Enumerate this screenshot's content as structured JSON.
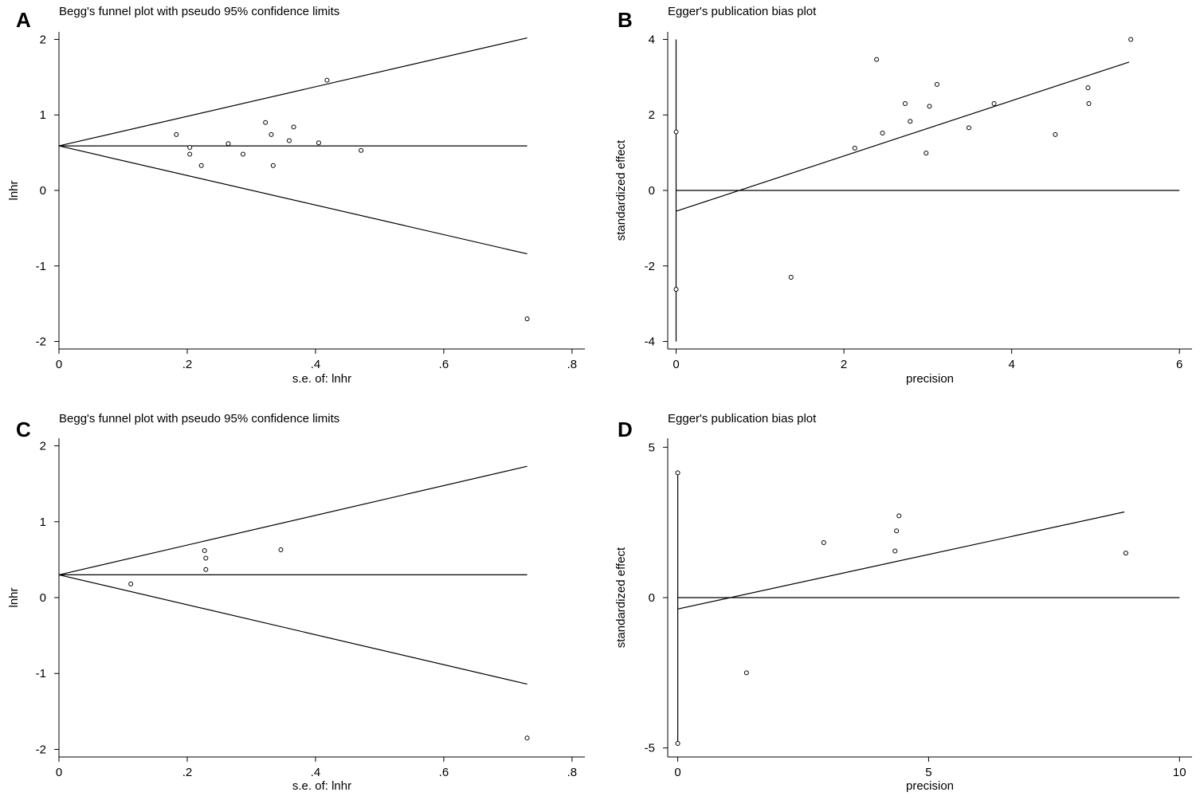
{
  "chart_data": [
    {
      "panel": "A",
      "type": "scatter",
      "title": "Begg's funnel plot with pseudo 95% confidence limits",
      "xlabel": "s.e. of: lnhr",
      "ylabel": "lnhr",
      "xlim": [
        0,
        0.82
      ],
      "ylim": [
        -2.1,
        2.1
      ],
      "xticks": [
        0,
        0.2,
        0.4,
        0.6,
        0.8
      ],
      "xtick_labels": [
        "0",
        ".2",
        ".4",
        ".6",
        ".8"
      ],
      "yticks": [
        -2,
        -1,
        0,
        1,
        2
      ],
      "ytick_labels": [
        "-2",
        "-1",
        "0",
        "1",
        "2"
      ],
      "grid": false,
      "lines": [
        {
          "name": "pooled estimate",
          "points": [
            [
              0,
              0.59
            ],
            [
              0.73,
              0.59
            ]
          ]
        },
        {
          "name": "upper pseudo 95% limit",
          "points": [
            [
              0,
              0.59
            ],
            [
              0.73,
              2.02
            ]
          ]
        },
        {
          "name": "lower pseudo 95% limit",
          "points": [
            [
              0,
              0.59
            ],
            [
              0.73,
              -0.84
            ]
          ]
        }
      ],
      "points": [
        [
          0.183,
          0.74
        ],
        [
          0.204,
          0.57
        ],
        [
          0.204,
          0.48
        ],
        [
          0.222,
          0.33
        ],
        [
          0.264,
          0.62
        ],
        [
          0.287,
          0.48
        ],
        [
          0.322,
          0.9
        ],
        [
          0.331,
          0.74
        ],
        [
          0.334,
          0.33
        ],
        [
          0.359,
          0.66
        ],
        [
          0.366,
          0.84
        ],
        [
          0.405,
          0.63
        ],
        [
          0.418,
          1.46
        ],
        [
          0.471,
          0.53
        ],
        [
          0.73,
          -1.7
        ]
      ]
    },
    {
      "panel": "B",
      "type": "scatter",
      "title": "Egger's publication bias plot",
      "xlabel": "precision",
      "ylabel": "standardized effect",
      "xlim": [
        -0.1,
        6.15
      ],
      "ylim": [
        -4.2,
        4.2
      ],
      "xticks": [
        0,
        2,
        4,
        6
      ],
      "xtick_labels": [
        "0",
        "2",
        "4",
        "6"
      ],
      "yticks": [
        -4,
        -2,
        0,
        2,
        4
      ],
      "ytick_labels": [
        "-4",
        "-2",
        "0",
        "2",
        "4"
      ],
      "grid": false,
      "lines": [
        {
          "name": "zero line",
          "points": [
            [
              0,
              0
            ],
            [
              6,
              0
            ]
          ]
        },
        {
          "name": "regression line",
          "points": [
            [
              0,
              -0.55
            ],
            [
              5.4,
              3.4
            ]
          ]
        },
        {
          "name": "intercept CI",
          "points": [
            [
              0,
              -4
            ],
            [
              0,
              4
            ]
          ]
        }
      ],
      "points": [
        [
          0,
          1.55
        ],
        [
          0,
          -2.62
        ],
        [
          1.37,
          -2.3
        ],
        [
          2.13,
          1.12
        ],
        [
          2.39,
          3.47
        ],
        [
          2.46,
          1.52
        ],
        [
          2.73,
          2.3
        ],
        [
          2.79,
          1.83
        ],
        [
          2.98,
          0.99
        ],
        [
          3.02,
          2.23
        ],
        [
          3.11,
          2.81
        ],
        [
          3.49,
          1.66
        ],
        [
          3.79,
          2.3
        ],
        [
          4.52,
          1.48
        ],
        [
          4.91,
          2.72
        ],
        [
          4.92,
          2.3
        ],
        [
          5.42,
          4.0
        ]
      ]
    },
    {
      "panel": "C",
      "type": "scatter",
      "title": "Begg's funnel plot with pseudo 95% confidence limits",
      "xlabel": "s.e. of: lnhr",
      "ylabel": "lnhr",
      "xlim": [
        0,
        0.82
      ],
      "ylim": [
        -2.1,
        2.1
      ],
      "xticks": [
        0,
        0.2,
        0.4,
        0.6,
        0.8
      ],
      "xtick_labels": [
        "0",
        ".2",
        ".4",
        ".6",
        ".8"
      ],
      "yticks": [
        -2,
        -1,
        0,
        1,
        2
      ],
      "ytick_labels": [
        "-2",
        "-1",
        "0",
        "1",
        "2"
      ],
      "grid": false,
      "lines": [
        {
          "name": "pooled estimate",
          "points": [
            [
              0,
              0.3
            ],
            [
              0.73,
              0.3
            ]
          ]
        },
        {
          "name": "upper pseudo 95% limit",
          "points": [
            [
              0,
              0.3
            ],
            [
              0.73,
              1.73
            ]
          ]
        },
        {
          "name": "lower pseudo 95% limit",
          "points": [
            [
              0,
              0.3
            ],
            [
              0.73,
              -1.14
            ]
          ]
        }
      ],
      "points": [
        [
          0.112,
          0.18
        ],
        [
          0.227,
          0.62
        ],
        [
          0.229,
          0.52
        ],
        [
          0.229,
          0.37
        ],
        [
          0.346,
          0.63
        ],
        [
          0.73,
          -1.85
        ]
      ]
    },
    {
      "panel": "D",
      "type": "scatter",
      "title": "Egger's publication bias plot",
      "xlabel": "precision",
      "ylabel": "standardized effect",
      "xlim": [
        -0.2,
        10.25
      ],
      "ylim": [
        -5.3,
        5.3
      ],
      "xticks": [
        0,
        5,
        10
      ],
      "xtick_labels": [
        "0",
        "5",
        "10"
      ],
      "yticks": [
        -5,
        0,
        5
      ],
      "ytick_labels": [
        "-5",
        "0",
        "5"
      ],
      "grid": false,
      "lines": [
        {
          "name": "zero line",
          "points": [
            [
              0,
              0
            ],
            [
              10,
              0
            ]
          ]
        },
        {
          "name": "regression line",
          "points": [
            [
              0,
              -0.38
            ],
            [
              8.9,
              2.85
            ]
          ]
        },
        {
          "name": "intercept CI",
          "points": [
            [
              0,
              -4.85
            ],
            [
              0,
              4.15
            ]
          ]
        }
      ],
      "points": [
        [
          0,
          4.15
        ],
        [
          0,
          -4.85
        ],
        [
          1.37,
          -2.5
        ],
        [
          2.91,
          1.83
        ],
        [
          4.33,
          1.55
        ],
        [
          4.36,
          2.22
        ],
        [
          4.41,
          2.72
        ],
        [
          8.93,
          1.48
        ]
      ]
    }
  ]
}
